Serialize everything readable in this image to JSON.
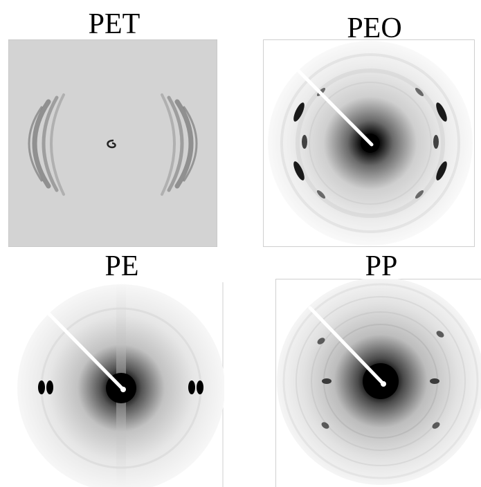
{
  "panels": [
    {
      "label": "PET"
    },
    {
      "label": "PEO"
    },
    {
      "label": "PE"
    },
    {
      "label": "PP"
    }
  ],
  "colors": {
    "background": "#ffffff",
    "pet_plate": "#d3d3d3",
    "detector_gray": "#f3f3f3",
    "beamstop": "#ffffff",
    "intensity": "#000000"
  }
}
